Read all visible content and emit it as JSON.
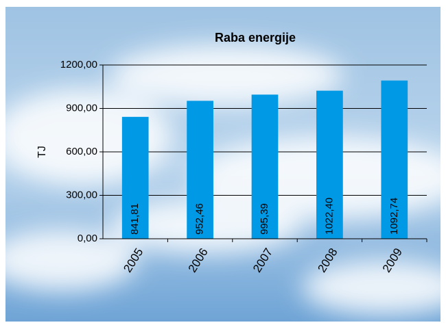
{
  "chart_data": {
    "type": "bar",
    "title": "Raba energije",
    "y_label": "TJ",
    "categories": [
      "2005",
      "2006",
      "2007",
      "2008",
      "2009"
    ],
    "values": [
      841.81,
      952.46,
      995.39,
      1022.4,
      1092.74
    ],
    "value_labels": [
      "841,81",
      "952,46",
      "995,39",
      "1022,40",
      "1092,74"
    ],
    "color": "#0099e6",
    "ylim": [
      0,
      1200
    ],
    "yticks": [
      {
        "value": 0,
        "label": "0,00"
      },
      {
        "value": 300,
        "label": "300,00"
      },
      {
        "value": 600,
        "label": "600,00"
      },
      {
        "value": 900,
        "label": "900,00"
      },
      {
        "value": 1200,
        "label": "1200,00"
      }
    ],
    "grid": true
  }
}
